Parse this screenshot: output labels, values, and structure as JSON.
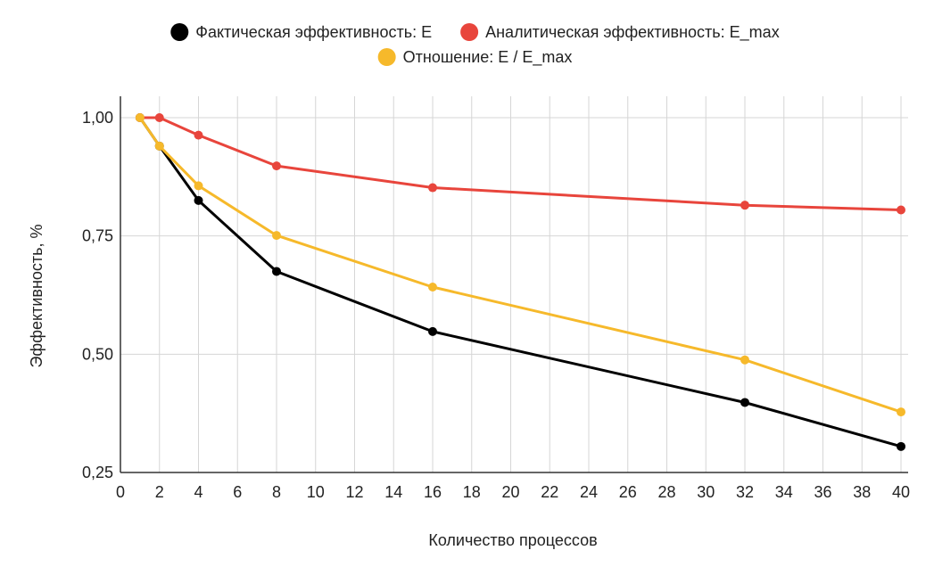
{
  "chart_data": {
    "type": "line",
    "title": "",
    "xlabel": "Количество процессов",
    "ylabel": "Эффективность, %",
    "x": [
      1,
      2,
      4,
      8,
      16,
      32,
      40
    ],
    "xlim": [
      0,
      40
    ],
    "ylim": [
      0.25,
      1.0
    ],
    "xticks": [
      0,
      2,
      4,
      6,
      8,
      10,
      12,
      14,
      16,
      18,
      20,
      22,
      24,
      26,
      28,
      30,
      32,
      34,
      36,
      38,
      40
    ],
    "yticks": [
      0.25,
      0.5,
      0.75,
      1.0
    ],
    "ytick_labels": [
      "0,25",
      "0,50",
      "0,75",
      "1,00"
    ],
    "grid": true,
    "legend_position": "top",
    "series": [
      {
        "name": "Фактическая эффективность: E",
        "color": "#000000",
        "values": [
          1.0,
          0.94,
          0.825,
          0.675,
          0.548,
          0.398,
          0.305
        ]
      },
      {
        "name": "Аналитическая эффективность: E_max",
        "color": "#e8453c",
        "values": [
          1.0,
          1.0,
          0.963,
          0.898,
          0.852,
          0.815,
          0.805
        ]
      },
      {
        "name": "Отношение: E / E_max",
        "color": "#f6b92b",
        "values": [
          1.0,
          0.94,
          0.856,
          0.751,
          0.642,
          0.488,
          0.378
        ]
      }
    ]
  }
}
